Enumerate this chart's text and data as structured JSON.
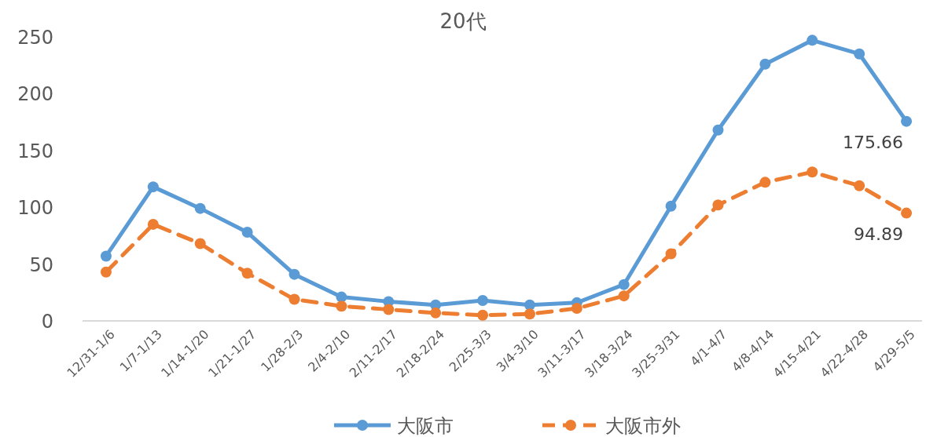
{
  "chart_data": {
    "type": "line",
    "title": "20代",
    "categories": [
      "12/31-1/6",
      "1/7-1/13",
      "1/14-1/20",
      "1/21-1/27",
      "1/28-2/3",
      "2/4-2/10",
      "2/11-2/17",
      "2/18-2/24",
      "2/25-3/3",
      "3/4-3/10",
      "3/11-3/17",
      "3/18-3/24",
      "3/25-3/31",
      "4/1-4/7",
      "4/8-4/14",
      "4/15-4/21",
      "4/22-4/28",
      "4/29-5/5"
    ],
    "series": [
      {
        "name": "大阪市",
        "color": "#5b9bd5",
        "line_style": "solid",
        "values": [
          57,
          118,
          99,
          78,
          41,
          21,
          17,
          14,
          18,
          14,
          16,
          32,
          101,
          168,
          226,
          247,
          235,
          175.66
        ],
        "value_labels": [
          null,
          null,
          null,
          null,
          null,
          null,
          null,
          null,
          null,
          null,
          null,
          null,
          null,
          null,
          null,
          null,
          null,
          "175.66"
        ]
      },
      {
        "name": "大阪市外",
        "color": "#ed7d31",
        "line_style": "dashed",
        "values": [
          43,
          85,
          68,
          42,
          19,
          13,
          10,
          7,
          5,
          6,
          11,
          22,
          59,
          102,
          122,
          131,
          119,
          94.89
        ],
        "value_labels": [
          null,
          null,
          null,
          null,
          null,
          null,
          null,
          null,
          null,
          null,
          null,
          null,
          null,
          null,
          null,
          null,
          null,
          "94.89"
        ]
      }
    ],
    "ylim": [
      0,
      250
    ],
    "yticks": [
      0,
      50,
      100,
      150,
      200,
      250
    ],
    "grid": false,
    "marker": "circle",
    "legend": "bottom"
  }
}
